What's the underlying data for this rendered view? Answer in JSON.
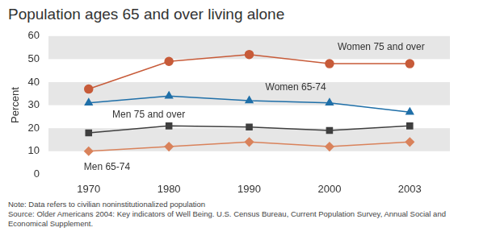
{
  "chart_data": {
    "type": "line",
    "title": "Population ages 65 and over living alone",
    "y_label": "Percent",
    "categories": [
      "1970",
      "1980",
      "1990",
      "2000",
      "2003"
    ],
    "series": [
      {
        "name": "Women 75 and over",
        "color": "#c75b39",
        "marker": "circle",
        "values": [
          37,
          49,
          52,
          48,
          48
        ]
      },
      {
        "name": "Women 65-74",
        "color": "#1f6fa8",
        "marker": "triangle",
        "values": [
          31,
          34,
          32,
          31,
          27
        ]
      },
      {
        "name": "Men 75 and over",
        "color": "#3f3f3f",
        "marker": "square",
        "values": [
          18,
          21,
          20.5,
          19,
          21
        ]
      },
      {
        "name": "Men 65-74",
        "color": "#d9825b",
        "marker": "diamond",
        "values": [
          10,
          12,
          14,
          12,
          14
        ]
      }
    ],
    "ylim": [
      0,
      60
    ],
    "yticks": [
      0,
      10,
      20,
      30,
      40,
      50,
      60
    ],
    "grid": true,
    "notes": [
      "Note: Data refers to civilian noninstitutionalized population",
      "Source: Older Americans 2004: Key indicators of Well Being. U.S. Census Bureau, Current Population Survey, Annual Social and Economical Supplement."
    ]
  }
}
